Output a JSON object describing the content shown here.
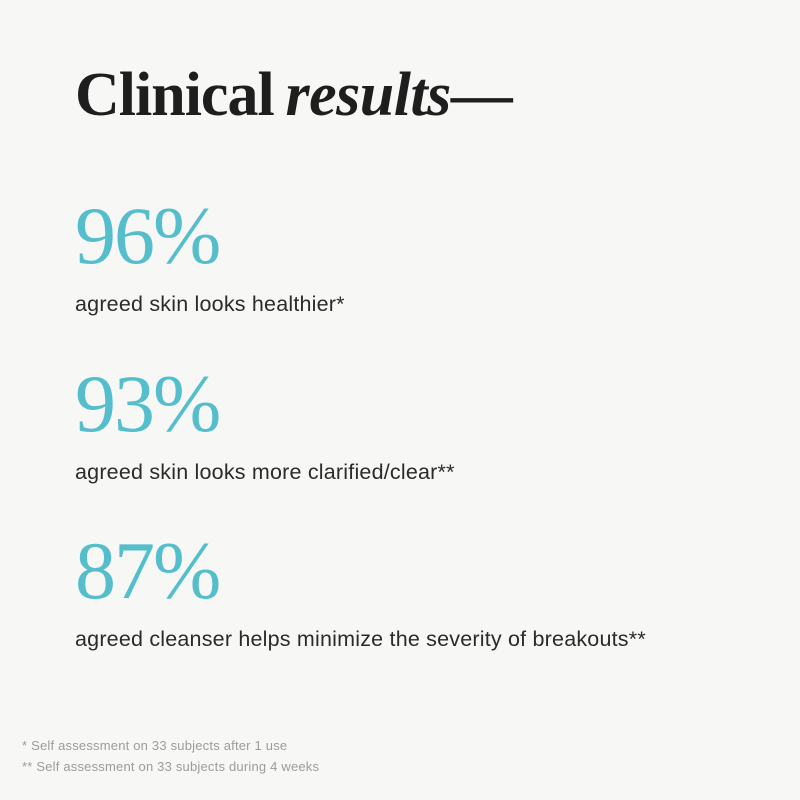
{
  "colors": {
    "background": "#F7F7F5",
    "accent_teal": "#55BECD",
    "title_text": "#1E1E1E",
    "caption_text": "#2B2B2B",
    "footnote_text": "#9C9C9C"
  },
  "title": {
    "regular": "Clinical",
    "italic": "results",
    "dash": "—"
  },
  "stats": [
    {
      "value": "96%",
      "caption": "agreed skin looks healthier*"
    },
    {
      "value": "93%",
      "caption": "agreed skin looks more clarified/clear**"
    },
    {
      "value": "87%",
      "caption": "agreed cleanser helps minimize the severity of breakouts**"
    }
  ],
  "footnotes": [
    "* Self assessment on 33 subjects after 1 use",
    "** Self assessment on 33 subjects during 4 weeks"
  ],
  "chart_data": {
    "type": "table",
    "title": "Clinical results—",
    "categories": [
      "agreed skin looks healthier*",
      "agreed skin looks more clarified/clear**",
      "agreed cleanser helps minimize the severity of breakouts**"
    ],
    "values": [
      96,
      93,
      87
    ],
    "unit": "%",
    "annotations": [
      "* Self assessment on 33 subjects after 1 use",
      "** Self assessment on 33 subjects during 4 weeks"
    ],
    "layout_hints": {
      "style": "big-number stat list, no axes or gridlines",
      "value_color": "#55BECD",
      "background": "#F7F7F5"
    }
  }
}
